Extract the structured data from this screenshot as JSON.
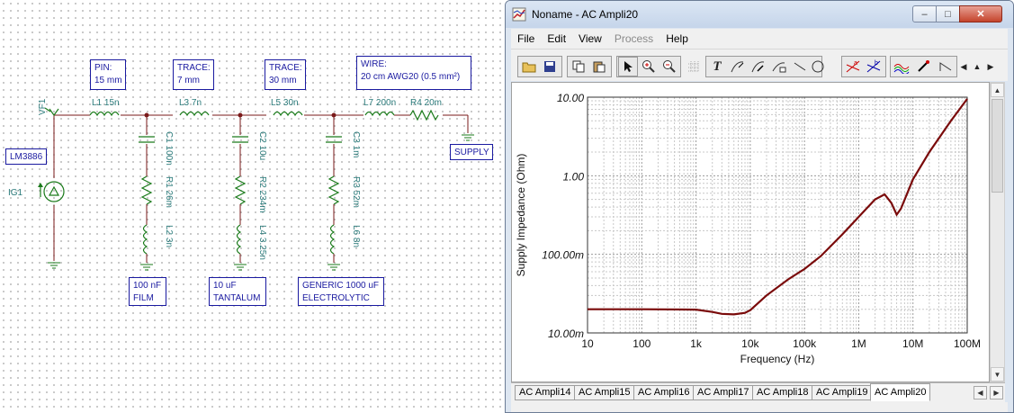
{
  "schematic": {
    "notes": {
      "pin": "PIN:\n15 mm",
      "trace1": "TRACE:\n7 mm",
      "trace2": "TRACE:\n30 mm",
      "wire": "WIRE:\n20 cm AWG20 (0.5 mm²)",
      "lm3886": "LM3886",
      "supply": "SUPPLY",
      "film": "100 nF\nFILM",
      "tantalum": "10 uF\nTANTALUM",
      "electrolytic": "GENERIC 1000 uF\nELECTROLYTIC"
    },
    "labels": {
      "vf1": "VF1",
      "ig1": "IG1",
      "l1": "L1 15n",
      "l3": "L3 7n",
      "l5": "L5 30n",
      "l7": "L7 200n",
      "r4": "R4 20m",
      "c1": "C1 100n",
      "r1": "R1 26m",
      "l2": "L2 3n",
      "c2": "C2 10u",
      "r2": "R2 234m",
      "l4": "L4 3.25n",
      "c3": "C3 1m",
      "r3": "R3 52m",
      "l6": "L6 8n"
    }
  },
  "window": {
    "title": "Noname - AC Ampli20",
    "caption_buttons": {
      "minimize": "–",
      "maximize": "□",
      "close": "✕"
    },
    "menu": [
      {
        "label": "File",
        "enabled": true
      },
      {
        "label": "Edit",
        "enabled": true
      },
      {
        "label": "View",
        "enabled": true
      },
      {
        "label": "Process",
        "enabled": false
      },
      {
        "label": "Help",
        "enabled": true
      }
    ],
    "toolbar_icons": [
      "open-folder-icon",
      "save-icon",
      "copy-icon",
      "paste-icon",
      "pointer-icon",
      "zoom-in-icon",
      "zoom-out-icon",
      "grid-icon",
      "text-icon",
      "curve-cursor-icon",
      "curve-marker-icon",
      "curve-label-icon",
      "line-icon",
      "circle-icon",
      "cursor-a-icon",
      "cursor-b-icon",
      "curve-color-icon",
      "pen-icon",
      "step-icon",
      "scroll-left-icon",
      "scroll-up-icon",
      "scroll-right-icon"
    ],
    "tabs": [
      "AC Ampli14",
      "AC Ampli15",
      "AC Ampli16",
      "AC Ampli17",
      "AC Ampli18",
      "AC Ampli19",
      "AC Ampli20"
    ],
    "active_tab": "AC Ampli20"
  },
  "chart_data": {
    "type": "line",
    "title": "",
    "xlabel": "Frequency (Hz)",
    "ylabel": "Supply Impedance (Ohm)",
    "x_scale": "log",
    "y_scale": "log",
    "xlim": [
      10,
      100000000
    ],
    "ylim": [
      0.01,
      10
    ],
    "grid": true,
    "x_tick_labels": [
      "10",
      "100",
      "1k",
      "10k",
      "100k",
      "1M",
      "10M",
      "100M"
    ],
    "y_tick_labels": [
      "10.00m",
      "100.00m",
      "1.00",
      "10.00"
    ],
    "series": [
      {
        "name": "",
        "color": "#7a0a0a",
        "x": [
          10,
          100,
          1000,
          2000,
          3000,
          5000,
          8000,
          10000,
          20000,
          50000,
          100000,
          200000,
          500000,
          1000000,
          2000000,
          3000000,
          4000000,
          5000000,
          6000000,
          10000000,
          20000000,
          50000000,
          100000000
        ],
        "y": [
          0.02,
          0.02,
          0.0198,
          0.0185,
          0.0175,
          0.0172,
          0.018,
          0.0195,
          0.03,
          0.048,
          0.065,
          0.095,
          0.18,
          0.3,
          0.5,
          0.58,
          0.45,
          0.32,
          0.38,
          0.9,
          2.0,
          5.0,
          9.5
        ]
      }
    ]
  }
}
